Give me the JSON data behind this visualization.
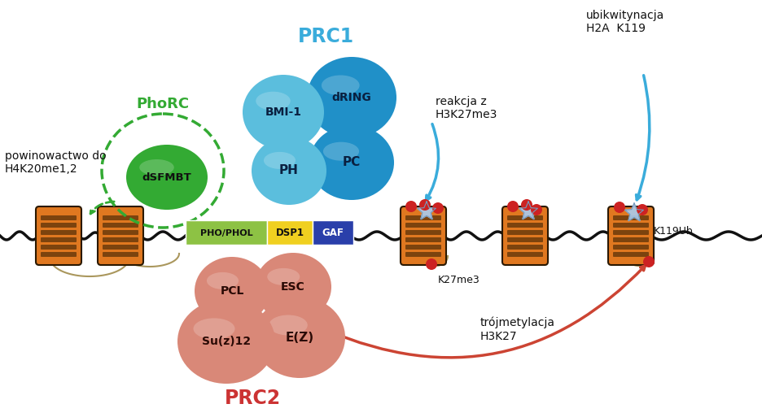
{
  "bg_color": "#ffffff",
  "nucleosome_color": "#e07820",
  "nucleosome_stripe_color": "#2a1800",
  "dna_color": "#111111",
  "dna_linker_color": "#9B8540",
  "prc1_label_color": "#3aacdb",
  "prc2_label_color": "#cc3333",
  "phorc_label_color": "#33aa33",
  "blue_arrow_color": "#3aacdb",
  "red_arrow_color": "#cc4433",
  "green_dashed_color": "#33aa33",
  "bmi1_color": "#5bbedd",
  "dring_color": "#2090c8",
  "ph_color": "#5bbedd",
  "pc_color": "#2090c8",
  "dsfmbt_color": "#33aa33",
  "pho_phol_color": "#8dc244",
  "dsp1_color": "#f0d020",
  "gaf_color": "#2a3faa",
  "pcl_color": "#d98878",
  "esc_color": "#d98878",
  "suz12_color": "#d98878",
  "ez_color": "#d98878",
  "red_dot_color": "#cc2222",
  "blue_star_color": "#aaccee",
  "annotation_color": "#111111",
  "text_prc1": "PRC1",
  "text_prc2": "PRC2",
  "text_phorc": "PhoRC",
  "text_bmi1": "BMI-1",
  "text_dring": "dRING",
  "text_ph": "PH",
  "text_pc": "PC",
  "text_dsfmbt": "dSFMBT",
  "text_pho": "PHO/PHOL",
  "text_dsp1": "DSP1",
  "text_gaf": "GAF",
  "text_pcl": "PCL",
  "text_esc": "ESC",
  "text_suz12": "Su(z)12",
  "text_ez": "E(Z)",
  "text_ubik": "ubikwitynacja\nH2A  K119",
  "text_reakcja": "reakcja z\nH3K27me3",
  "text_trojmet": "trójmetylacja\nH3K27",
  "text_powinowactwo": "powinowactwo do\nH4K20me1,2",
  "text_k27me3": "K27me3",
  "text_k119ub": "K119Ub"
}
